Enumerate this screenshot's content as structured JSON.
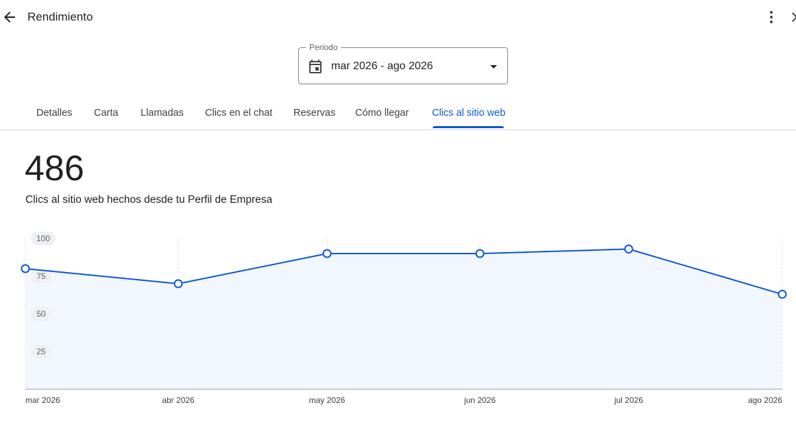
{
  "header": {
    "title": "Rendimiento",
    "back_icon": "arrow-back-icon",
    "more_icon": "more-vert-icon",
    "close_icon": "close-icon"
  },
  "period": {
    "label": "Periodo",
    "value": "mar 2026 - ago 2026"
  },
  "tabs": [
    {
      "label": "Detalles",
      "active": false
    },
    {
      "label": "Carta",
      "active": false
    },
    {
      "label": "Llamadas",
      "active": false
    },
    {
      "label": "Clics en el chat",
      "active": false
    },
    {
      "label": "Reservas",
      "active": false
    },
    {
      "label": "Cómo llegar",
      "active": false
    },
    {
      "label": "Clics al sitio web",
      "active": true
    }
  ],
  "summary": {
    "total": "486",
    "description": "Clics al sitio web hechos desde tu Perfil de Empresa"
  },
  "colors": {
    "accent": "#0b57d0",
    "line": "#0b57d0",
    "fill": "#f2f6fd"
  },
  "chart_data": {
    "type": "area",
    "categories": [
      "mar 2026",
      "abr 2026",
      "may 2026",
      "jun 2026",
      "jul 2026",
      "ago 2026"
    ],
    "series": [
      {
        "values": [
          80,
          70,
          90,
          90,
          93,
          63
        ]
      }
    ],
    "yticks": [
      "25",
      "50",
      "75",
      "100"
    ],
    "ylim": [
      0,
      100
    ],
    "grid": "vertical-dashed",
    "title": "",
    "xlabel": "",
    "ylabel": ""
  }
}
